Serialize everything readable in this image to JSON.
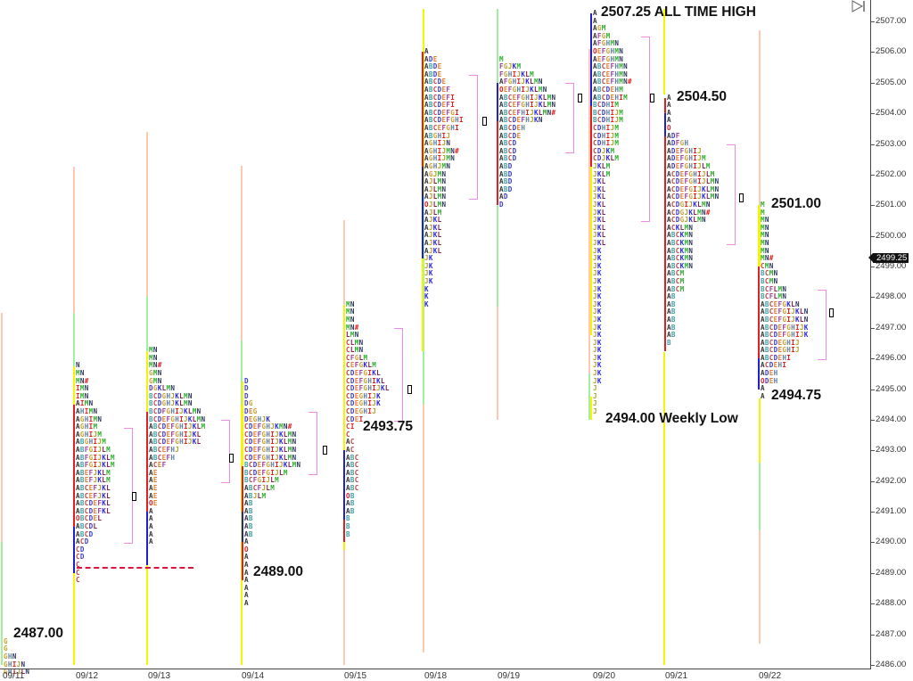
{
  "chart_data": {
    "type": "market-profile",
    "title": "",
    "xlabel": "",
    "ylabel": "Price",
    "ylim": [
      2486.0,
      2507.4
    ],
    "tick_size": 0.25,
    "grid": false,
    "current_price": "2499.25",
    "y_ticks": [
      "2507.00",
      "2506.00",
      "2505.00",
      "2504.00",
      "2503.00",
      "2502.00",
      "2501.00",
      "2500.00",
      "2499.00",
      "2498.00",
      "2497.00",
      "2496.00",
      "2495.00",
      "2494.00",
      "2493.00",
      "2492.00",
      "2491.00",
      "2490.00",
      "2489.00",
      "2488.00",
      "2487.00",
      "2486.00"
    ],
    "x_ticks": [
      {
        "label": "09/11",
        "x": 5
      },
      {
        "label": "09/12",
        "x": 87
      },
      {
        "label": "09/13",
        "x": 168
      },
      {
        "label": "09/14",
        "x": 273
      },
      {
        "label": "09/15",
        "x": 388
      },
      {
        "label": "09/18",
        "x": 478
      },
      {
        "label": "09/19",
        "x": 560
      },
      {
        "label": "09/20",
        "x": 667
      },
      {
        "label": "09/21",
        "x": 748
      },
      {
        "label": "09/22",
        "x": 853
      }
    ],
    "annotations": [
      {
        "text": "2487.00",
        "x": 15,
        "price": 2487.0
      },
      {
        "text": "2489.00",
        "x": 284,
        "price": 2489.0
      },
      {
        "text": "2493.75",
        "x": 407,
        "price": 2493.75
      },
      {
        "text": "2507.25 ALL TIME HIGH",
        "x": 674,
        "price": 2507.25
      },
      {
        "text": "2504.50",
        "x": 759,
        "price": 2504.5
      },
      {
        "text": "2494.00 Weekly Low",
        "x": 679,
        "price": 2494.0
      },
      {
        "text": "2501.00",
        "x": 865,
        "price": 2501.0
      },
      {
        "text": "2494.75",
        "x": 865,
        "price": 2494.75
      }
    ],
    "dashed_line": {
      "price": 2489.2,
      "x1": 86,
      "x2": 217,
      "color": "#dc143c"
    },
    "session_bars": [
      {
        "x": 1,
        "segments": [
          [
            "#ffc8b0",
            2497.5,
            2490.0
          ],
          [
            "#a0f0a0",
            2490.0,
            2486.0
          ]
        ]
      },
      {
        "x": 82,
        "segments": [
          [
            "#ffc8b0",
            2502.25,
            2497.5
          ],
          [
            "#a0f0a0",
            2497.5,
            2495.2
          ],
          [
            "#f5f500",
            2495.2,
            2486.0
          ]
        ]
      },
      {
        "x": 164,
        "segments": [
          [
            "#ffc8b0",
            2503.4,
            2498.0
          ],
          [
            "#a0f0a0",
            2498.0,
            2495.4
          ],
          [
            "#f5f500",
            2495.4,
            2486.0
          ]
        ]
      },
      {
        "x": 270,
        "segments": [
          [
            "#ffc8b0",
            2502.3,
            2496.6
          ],
          [
            "#a0f0a0",
            2496.6,
            2494.5
          ],
          [
            "#f5f500",
            2494.5,
            2486.0
          ]
        ]
      },
      {
        "x": 385,
        "segments": [
          [
            "#ffc8b0",
            2500.5,
            2486.0
          ]
        ]
      },
      {
        "x": 474,
        "segments": [
          [
            "#f5f500",
            2507.4,
            2501.3
          ],
          [
            "#a0f0a0",
            2501.3,
            2494.5
          ],
          [
            "#ffc8b0",
            2494.5,
            2486.4
          ]
        ]
      },
      {
        "x": 557,
        "segments": [
          [
            "#a0f0a0",
            2507.4,
            2497.7
          ],
          [
            "#ffc8b0",
            2497.7,
            2494.0
          ]
        ]
      },
      {
        "x": 660,
        "segments": [
          [
            "#ffc8b0",
            2506.1,
            2495.5
          ],
          [
            "#a0f0a0",
            2495.5,
            2494.0
          ]
        ]
      },
      {
        "x": 744,
        "segments": [
          [
            "#f5f500",
            2507.4,
            2504.6
          ],
          [
            "#f5f500",
            2496.2,
            2486.0
          ]
        ]
      },
      {
        "x": 851,
        "segments": [
          [
            "#ffc8b0",
            2506.7,
            2500.9
          ],
          [
            "#f5f500",
            2500.9,
            2499.0
          ],
          [
            "#f5f500",
            2494.7,
            2492.6
          ],
          [
            "#a0f0a0",
            2492.6,
            2490.4
          ],
          [
            "#ffc8b0",
            2490.4,
            2486.7
          ]
        ]
      }
    ],
    "profiles": [
      {
        "date": "09/11",
        "x": 4,
        "top": 2486.75,
        "spine": [],
        "rows": [
          "G",
          "G",
          "GHN",
          "GHIJN",
          "GHIJLN"
        ],
        "va": null,
        "poc": null
      },
      {
        "date": "09/12",
        "x": 85,
        "top": 2495.75,
        "spine": [
          [
            "#f5f500",
            2495.75,
            2494.5
          ],
          [
            "#e02020",
            2494.5,
            2490.5
          ],
          [
            "#2020d0",
            2490.5,
            2489.0
          ],
          [
            "#f5f500",
            2489.0,
            2486.0
          ]
        ],
        "rows": [
          "N",
          "MN",
          "MN#",
          "IMN",
          "IMN",
          "AIMN",
          "AHIMN",
          "AGHIMN",
          "AGHIM",
          "AGHIJM",
          "ABGHIJM",
          "ABFGIJLM",
          "ABFGIJKLM",
          "ABFGIJKLM",
          "ABEFJKLM",
          "ABEFJKLM",
          "ABCEFJKL",
          "ABCEFJKL",
          "ABCDEFKL",
          "ABCDEFKL",
          "OBCDEL",
          "ABCDL",
          "ABCD",
          "ACD",
          "CD",
          "CD",
          "C",
          "C",
          "C"
        ],
        "va": {
          "hi": 2493.75,
          "lo": 2490.0,
          "x": 148,
          "w": 9
        },
        "poc": {
          "price": 2491.5,
          "x": 148
        }
      },
      {
        "date": "09/13",
        "x": 167,
        "top": 2496.25,
        "spine": [
          [
            "#f5f500",
            2496.25,
            2494.25
          ],
          [
            "#e02020",
            2494.25,
            2491.0
          ],
          [
            "#2020d0",
            2491.0,
            2489.25
          ],
          [
            "#f5f500",
            2489.25,
            2486.0
          ]
        ],
        "rows": [
          "MN",
          "MN",
          "MN#",
          "GMN",
          "GMN",
          "DGKLMN",
          "BCDGHJKLMN",
          "BCDGHJKLMN",
          "BCDFGHIJKLMN",
          "BCDEFGHIJKLMN",
          "ABCDEFGHIJKLM",
          "ABCDEFGHIJKL",
          "ABCDEFGHIJKL",
          "ABCEFHJ",
          "ABCEFH",
          "ACEF",
          "AE",
          "AE",
          "AE",
          "AE",
          "OE",
          "A",
          "A",
          "A",
          "A",
          "A"
        ],
        "va": {
          "hi": 2494.0,
          "lo": 2492.0,
          "x": 257,
          "w": 9
        },
        "poc": {
          "price": 2492.75,
          "x": 257
        }
      },
      {
        "date": "09/14",
        "x": 274,
        "top": 2495.25,
        "spine": [
          [
            "#f5f500",
            2495.25,
            2492.5
          ],
          [
            "#e02020",
            2492.5,
            2491.0
          ],
          [
            "#2020d0",
            2491.0,
            2490.0
          ],
          [
            "#e02020",
            2490.0,
            2488.75
          ]
        ],
        "rows": [
          "D",
          "D",
          "D",
          "DG",
          "DEG",
          "DEGHJK",
          "CDEFGHJKMN#",
          "CDEFGHIJKLMN",
          "CDEFGHIJKLMN",
          "CDEFGHIJKLMN",
          "CDEFGHIJKLMN",
          "BCDEFGHIJKLMN",
          "BCDEFGIJLM",
          "BCFGIJLM",
          "ABCFJLM",
          "ABJLM",
          "AB",
          "AB",
          "AB",
          "AB",
          "AB",
          "A",
          "O",
          "A",
          "A",
          "A",
          "A",
          "A",
          "A",
          "A"
        ],
        "va": {
          "hi": 2494.25,
          "lo": 2492.25,
          "x": 355,
          "w": 9
        },
        "poc": {
          "price": 2493.0,
          "x": 362
        }
      },
      {
        "date": "09/15",
        "x": 388,
        "top": 2497.75,
        "spine": [
          [
            "#f5f500",
            2497.75,
            2493.0
          ],
          [
            "#2020d0",
            2493.0,
            2490.75
          ],
          [
            "#e02020",
            2490.75,
            2490.0
          ],
          [
            "#f5f500",
            2490.0,
            2489.75
          ]
        ],
        "rows": [
          "MN",
          "MN",
          "MN",
          "MN#",
          "LMN",
          "CLMN",
          "CLMN",
          "CFGLM",
          "CEFGKLM",
          "CDEFGIKL",
          "CDEFGHIKL",
          "CDEFGHIJKL",
          "CDEGHIJK",
          "CDEGHIJK",
          "CDEGHIJ",
          "CDEI",
          "CI",
          "C",
          "AC",
          "AC",
          "ABC",
          "ABC",
          "ABC",
          "ABC",
          "ABC",
          "OB",
          "AB",
          "AB",
          "B",
          "B",
          "B"
        ],
        "va": {
          "hi": 2497.0,
          "lo": 2494.0,
          "x": 451,
          "w": 9
        },
        "poc": {
          "price": 2495.0,
          "x": 457
        }
      },
      {
        "date": "09/18",
        "x": 476,
        "top": 2506.0,
        "spine": [
          [
            "#e02020",
            2506.0,
            2502.25
          ],
          [
            "#2020d0",
            2502.25,
            2499.25
          ],
          [
            "#f5f500",
            2499.25,
            2496.25
          ]
        ],
        "rows": [
          "A",
          "ADE",
          "ABDE",
          "ABDE",
          "ABCDE",
          "ABCDEF",
          "ABCDEFI",
          "ABCDEFI",
          "ABCDEFGI",
          "ABCDEFGHI",
          "ABCEFGHI",
          "ABGHIJ",
          "AGHIJN",
          "AGHIJMN#",
          "AGHIJMN",
          "AGHJMN",
          "AGJMN",
          "AJLMN",
          "AJLMN",
          "AJLMN",
          "OJLMN",
          "AJLM",
          "AJKL",
          "AJKL",
          "AJKL",
          "AJKL",
          "AJKL",
          "JK",
          "JK",
          "JK",
          "JK",
          "K",
          "K",
          "K"
        ],
        "va": {
          "hi": 2505.25,
          "lo": 2501.25,
          "x": 535,
          "w": 9
        },
        "poc": {
          "price": 2503.75,
          "x": 541
        }
      },
      {
        "date": "09/19",
        "x": 560,
        "top": 2505.75,
        "spine": [
          [
            "#2020d0",
            2505.0,
            2503.75
          ],
          [
            "#e02020",
            2503.75,
            2501.0
          ]
        ],
        "rows": [
          "M",
          "FGJKM",
          "FGHIJKLM",
          "AFGHIJKLMN",
          "OEFGHIJKLMN",
          "ABCEFGHIJKLMN",
          "ABCEFGHIJKLMN",
          "ABCEFHIJKLMN#",
          "ABCDEFHJKN",
          "ABCDEH",
          "ABCDE",
          "ABCD",
          "ABCD",
          "ABCD",
          "ABD",
          "ABD",
          "ABD",
          "ABD",
          "AD",
          "D"
        ],
        "va": {
          "hi": 2505.0,
          "lo": 2502.75,
          "x": 643,
          "w": 9
        },
        "poc": {
          "price": 2504.5,
          "x": 648
        }
      },
      {
        "date": "09/20",
        "x": 665,
        "top": 2507.25,
        "spine": [
          [
            "#2020d0",
            2507.25,
            2504.25
          ],
          [
            "#e02020",
            2504.25,
            2502.25
          ],
          [
            "#f5f500",
            2502.25,
            2496.75
          ],
          [
            "#f5f500",
            2494.75,
            2494.0
          ]
        ],
        "rows": [
          "A",
          "A",
          "AGM",
          "AFGM",
          "AFGHMN",
          "OEFGHMN",
          "AEFGHMN",
          "ABCEFHMN",
          "ABCEFHMN",
          "ABCEFHMN#",
          "ABCDEHM",
          "ABCDEHIM",
          "BCDHIM",
          "BCDHIJM",
          "BCDHIJM",
          "CDHIJM",
          "CDHIJM",
          "CDHIJM",
          "CDJKM",
          "CDJKLM",
          "JKLM",
          "JKLM",
          "JKL",
          "JKL",
          "JKL",
          "JKL",
          "JKL",
          "JKL",
          "JKL",
          "JKL",
          "JKL",
          "JK",
          "JK",
          "JK",
          "JK",
          "JK",
          "JK",
          "JK",
          "JK",
          "JK",
          "JK",
          "JK",
          "JK",
          "JK",
          "JK",
          "JK",
          "JK",
          "JK",
          "JK",
          "J",
          "J",
          "J",
          "J"
        ],
        "va": {
          "hi": 2506.5,
          "lo": 2500.5,
          "x": 728,
          "w": 9
        },
        "poc": {
          "price": 2504.5,
          "x": 729
        }
      },
      {
        "date": "09/21",
        "x": 748,
        "top": 2504.5,
        "spine": [
          [
            "#e02020",
            2504.5,
            2504.0
          ],
          [
            "#2020d0",
            2504.0,
            2503.25
          ],
          [
            "#e02020",
            2503.25,
            2496.25
          ]
        ],
        "rows": [
          "A",
          "A",
          "A",
          "A",
          "O",
          "ADF",
          "ADFGH",
          "ADEFGHIJ",
          "ADEFGHIJM",
          "ADEFGHIJLM",
          "ACDEFGHIJLM",
          "ACDEFGHIJLMN",
          "ACDEFGIJKLMN",
          "ACDEFGIJKLMN",
          "ACDGIJKLMN",
          "ACDGJKLMN#",
          "ACDGJKLMN",
          "ACKLMN",
          "ABCKMN",
          "ABCKMN",
          "ABCKMN",
          "ABCKMN",
          "ABCKMN",
          "ABCM",
          "ABCM",
          "ABCM",
          "AB",
          "AB",
          "AB",
          "AB",
          "AB",
          "AB",
          "B"
        ],
        "va": {
          "hi": 2503.0,
          "lo": 2499.75,
          "x": 824,
          "w": 9
        },
        "poc": {
          "price": 2501.25,
          "x": 829
        }
      },
      {
        "date": "09/22",
        "x": 853,
        "top": 2501.0,
        "spine": [
          [
            "#f5f500",
            2501.0,
            2499.0
          ],
          [
            "#e02020",
            2499.0,
            2496.0
          ],
          [
            "#2020d0",
            2496.0,
            2495.0
          ]
        ],
        "rows": [
          "M",
          "M",
          "MN",
          "MN",
          "MN",
          "MN",
          "MN",
          "MN#",
          "CMN",
          "BCMN",
          "BCMN",
          "BCFLMN",
          "BCFLMN",
          "ABCEFGKLN",
          "ABCEFGIJKLN",
          "ABCEFGIJKLN",
          "ABCDEFGHIJK",
          "ABCDEFGHIJK",
          "ABCDEGHIJ",
          "ABCDEGHIJ",
          "ABCDEHI",
          "ACDEHI",
          "ADEH",
          "ODEH",
          "A",
          "A"
        ],
        "va": {
          "hi": 2498.25,
          "lo": 2496.0,
          "x": 926,
          "w": 9
        },
        "poc": {
          "price": 2497.5,
          "x": 930
        }
      }
    ],
    "letter_colors": {
      "A": "#333333",
      "B": "#3aa0a8",
      "C": "#c04040",
      "D": "#4040c0",
      "E": "#e08030",
      "F": "#a040a0",
      "G": "#c8a030",
      "H": "#6080a0",
      "I": "#e02020",
      "J": "#b0a020",
      "K": "#2828e0",
      "L": "#8a2050",
      "M": "#30b030",
      "N": "#303860",
      "O": "#e02020",
      "#": "#e02020"
    }
  },
  "toolbar": {
    "play_button_icon": "play-to-end-icon"
  }
}
